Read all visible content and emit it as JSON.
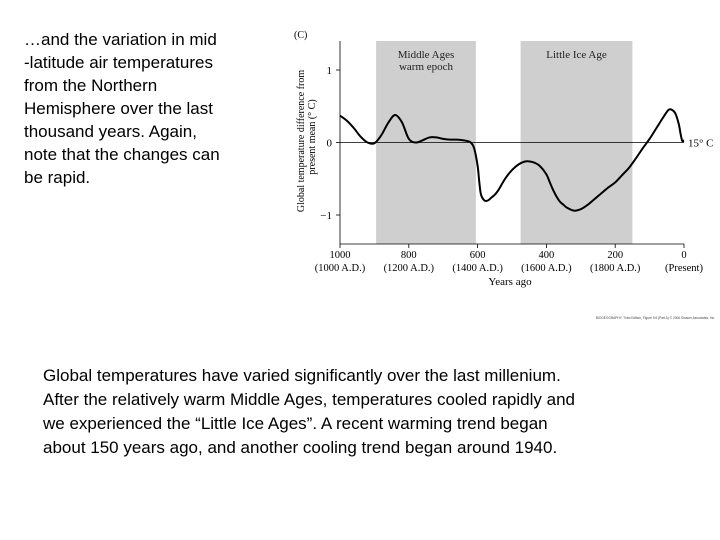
{
  "intro_lines": [
    "…and the variation in mid",
    "-latitude air temperatures",
    "from the Northern",
    "Hemisphere over the last",
    "thousand years.  Again,",
    "note that the changes can",
    "be rapid."
  ],
  "caption_lines": [
    "Global temperatures have varied significantly over the last millenium.",
    "After the relatively warm Middle Ages, temperatures cooled rapidly and",
    "we experienced the “Little Ice Ages”.  A recent warming trend began",
    "about 150 years ago, and another cooling trend began around 1940."
  ],
  "chart_data": {
    "type": "line",
    "title": "",
    "unit_label": "(C)",
    "ylabel_line1": "Global temperature difference from",
    "ylabel_line2": "present mean (° C)",
    "xlabel": "Years ago",
    "xlim": [
      1000,
      0
    ],
    "ylim": [
      -1.4,
      1.4
    ],
    "yticks": [
      {
        "value": 1,
        "label": "1"
      },
      {
        "value": 0,
        "label": "0"
      },
      {
        "value": -1,
        "label": "−1"
      }
    ],
    "xticks": [
      {
        "value": 1000,
        "label": "1000",
        "sub": "(1000 A.D.)"
      },
      {
        "value": 800,
        "label": "800",
        "sub": "(1200 A.D.)"
      },
      {
        "value": 600,
        "label": "600",
        "sub": "(1400 A.D.)"
      },
      {
        "value": 400,
        "label": "400",
        "sub": "(1600 A.D.)"
      },
      {
        "value": 200,
        "label": "200",
        "sub": "(1800 A.D.)"
      },
      {
        "value": 0,
        "label": "0",
        "sub": "(Present)"
      }
    ],
    "shaded_periods": [
      {
        "label_line1": "Middle Ages",
        "label_line2": "warm epoch",
        "start": 895,
        "end": 605
      },
      {
        "label_line1": "Little Ice Age",
        "label_line2": "",
        "start": 475,
        "end": 150
      }
    ],
    "reference_line": {
      "value": 0,
      "label": "15° C"
    },
    "series": [
      {
        "name": "Temperature difference",
        "x": [
          1000,
          980,
          960,
          940,
          920,
          900,
          880,
          860,
          840,
          820,
          800,
          780,
          760,
          740,
          720,
          700,
          680,
          660,
          640,
          630,
          620,
          610,
          600,
          595,
          590,
          580,
          570,
          560,
          550,
          540,
          520,
          500,
          480,
          460,
          440,
          420,
          400,
          390,
          380,
          370,
          360,
          350,
          340,
          320,
          300,
          280,
          260,
          240,
          220,
          200,
          180,
          160,
          140,
          120,
          100,
          80,
          60,
          45,
          35,
          25,
          15,
          10,
          5,
          0
        ],
        "y": [
          0.37,
          0.3,
          0.2,
          0.08,
          0.0,
          -0.01,
          0.1,
          0.27,
          0.38,
          0.28,
          0.05,
          0.0,
          0.03,
          0.07,
          0.07,
          0.05,
          0.04,
          0.04,
          0.03,
          0.02,
          0.0,
          -0.08,
          -0.32,
          -0.55,
          -0.72,
          -0.8,
          -0.8,
          -0.76,
          -0.72,
          -0.66,
          -0.5,
          -0.38,
          -0.3,
          -0.26,
          -0.27,
          -0.32,
          -0.44,
          -0.55,
          -0.66,
          -0.75,
          -0.82,
          -0.86,
          -0.9,
          -0.94,
          -0.92,
          -0.86,
          -0.78,
          -0.7,
          -0.62,
          -0.55,
          -0.45,
          -0.35,
          -0.22,
          -0.08,
          0.05,
          0.2,
          0.35,
          0.45,
          0.45,
          0.4,
          0.25,
          0.12,
          0.02,
          0.03
        ]
      }
    ]
  },
  "credit": "BIOGEOGRAPHY, Third Edition, Figure 9.6 (Part A) © 2006 Sinauer Associates, Inc."
}
